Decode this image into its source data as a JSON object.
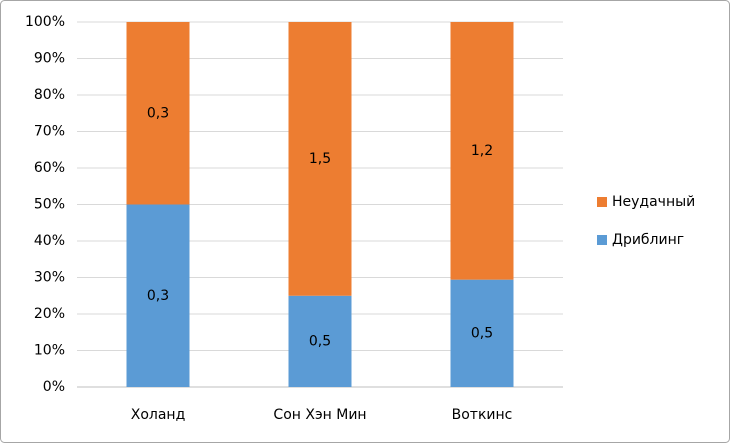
{
  "chart_data": {
    "type": "bar",
    "stack": "percent",
    "categories": [
      "Холанд",
      "Сон Хэн Мин",
      "Воткинс"
    ],
    "series": [
      {
        "name": "Дриблинг",
        "color": "#5b9bd5",
        "values": [
          0.3,
          0.5,
          0.5
        ],
        "value_labels": [
          "0,3",
          "0,5",
          "0,5"
        ]
      },
      {
        "name": "Неудачный",
        "color": "#ed7d31",
        "values": [
          0.3,
          1.5,
          1.2
        ],
        "value_labels": [
          "0,3",
          "1,5",
          "1,2"
        ]
      }
    ],
    "ylim": [
      0,
      100
    ],
    "yticks": [
      {
        "value": 0,
        "label": "0%"
      },
      {
        "value": 10,
        "label": "10%"
      },
      {
        "value": 20,
        "label": "20%"
      },
      {
        "value": 30,
        "label": "30%"
      },
      {
        "value": 40,
        "label": "40%"
      },
      {
        "value": 50,
        "label": "50%"
      },
      {
        "value": 60,
        "label": "60%"
      },
      {
        "value": 70,
        "label": "70%"
      },
      {
        "value": 80,
        "label": "80%"
      },
      {
        "value": 90,
        "label": "90%"
      },
      {
        "value": 100,
        "label": "100%"
      }
    ],
    "grid": true,
    "legend": "right"
  }
}
